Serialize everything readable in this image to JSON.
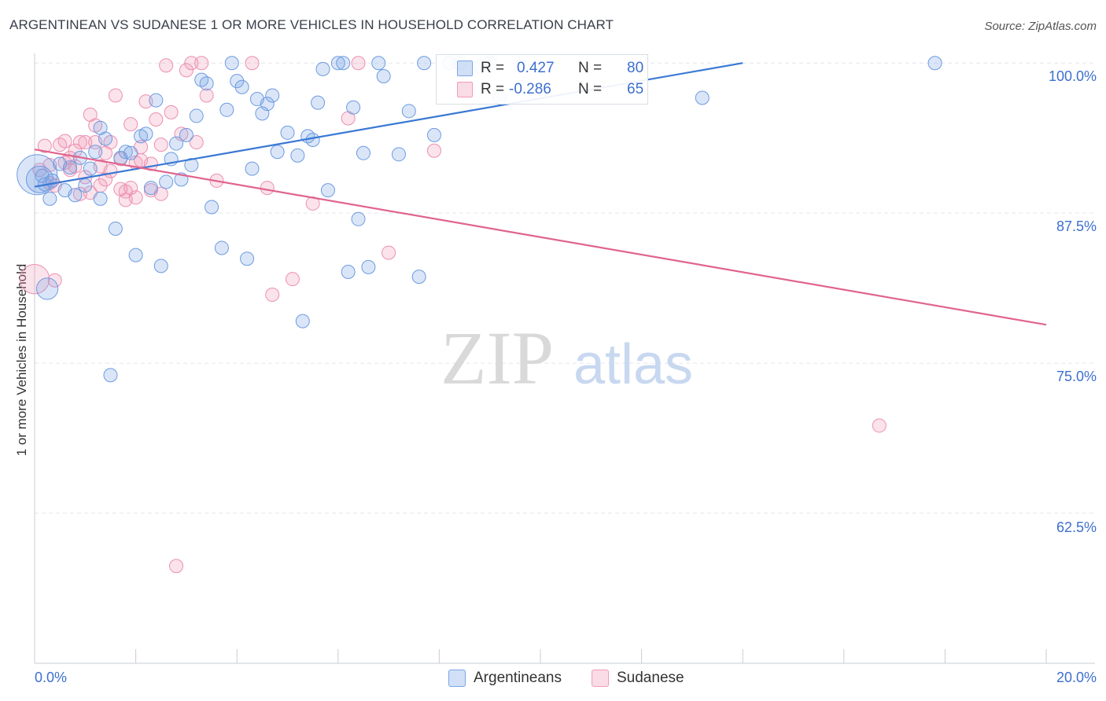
{
  "title": "ARGENTINEAN VS SUDANESE 1 OR MORE VEHICLES IN HOUSEHOLD CORRELATION CHART",
  "source": "Source: ZipAtlas.com",
  "watermark": {
    "zip": "ZIP",
    "atlas": "atlas"
  },
  "legend_top": {
    "rows": [
      {
        "r_label": "R =",
        "r_value": "0.427",
        "n_label": "N =",
        "n_value": "80",
        "color": "#7aa5e6"
      },
      {
        "r_label": "R =",
        "r_value": "-0.286",
        "n_label": "N =",
        "n_value": "65",
        "color": "#f19ab8"
      }
    ]
  },
  "legend_bottom": [
    {
      "label": "Argentineans",
      "color": "#7aa5e6"
    },
    {
      "label": "Sudanese",
      "color": "#f19ab8"
    }
  ],
  "colors": {
    "blue": "#3a78d4",
    "blue_fill": "rgba(122,165,230,0.28)",
    "blue_stroke": "#6d9be0",
    "pink": "#e0648f",
    "pink_fill": "rgba(241,154,184,0.28)",
    "pink_stroke": "#ec8fb0",
    "axis_text": "#3d6fce",
    "grid": "#e3e6ec"
  },
  "chart_data": {
    "type": "scatter",
    "title": "ARGENTINEAN VS SUDANESE 1 OR MORE VEHICLES IN HOUSEHOLD CORRELATION CHART",
    "xlabel": "",
    "ylabel": "1 or more Vehicles in Household",
    "xlim": [
      0,
      20
    ],
    "ylim": [
      50,
      100.8
    ],
    "x_tick_labels": [
      "0.0%",
      "20.0%"
    ],
    "y_ticks": [
      62.5,
      75.0,
      87.5,
      100.0
    ],
    "y_tick_labels": [
      "62.5%",
      "75.0%",
      "87.5%",
      "100.0%"
    ],
    "grid": true,
    "legend_position": "top-center",
    "series": [
      {
        "name": "Argentineans",
        "r": 0.427,
        "n": 80,
        "trend": {
          "x": [
            0.0,
            14.0
          ],
          "y": [
            89.7,
            100.0
          ]
        },
        "points": [
          [
            0.05,
            90.7,
            3
          ],
          [
            0.1,
            90.3,
            2
          ],
          [
            0.15,
            90.6,
            1
          ],
          [
            0.2,
            89.9,
            1
          ],
          [
            0.25,
            81.2,
            1.6
          ],
          [
            0.3,
            88.7,
            1
          ],
          [
            0.35,
            90.2,
            1
          ],
          [
            0.5,
            91.6,
            1
          ],
          [
            0.6,
            89.4,
            1
          ],
          [
            0.7,
            91.3,
            1
          ],
          [
            0.8,
            89.0,
            1
          ],
          [
            0.9,
            92.1,
            1
          ],
          [
            1.0,
            89.8,
            1
          ],
          [
            1.1,
            91.2,
            1
          ],
          [
            1.2,
            92.6,
            1
          ],
          [
            1.3,
            88.7,
            1
          ],
          [
            1.4,
            93.7,
            1
          ],
          [
            1.6,
            86.2,
            1
          ],
          [
            1.7,
            92.1,
            1
          ],
          [
            1.8,
            92.6,
            1
          ],
          [
            1.9,
            92.5,
            1
          ],
          [
            1.3,
            94.6,
            1
          ],
          [
            2.0,
            84.0,
            1
          ],
          [
            2.1,
            93.9,
            1
          ],
          [
            2.2,
            94.1,
            1
          ],
          [
            2.3,
            89.6,
            1
          ],
          [
            2.4,
            96.9,
            1
          ],
          [
            2.5,
            83.1,
            1
          ],
          [
            2.6,
            90.1,
            1
          ],
          [
            2.7,
            92.0,
            1
          ],
          [
            2.8,
            93.3,
            1
          ],
          [
            2.9,
            90.3,
            1
          ],
          [
            3.0,
            94.0,
            1
          ],
          [
            3.1,
            91.5,
            1
          ],
          [
            3.2,
            95.6,
            1
          ],
          [
            3.3,
            98.6,
            1
          ],
          [
            3.4,
            98.3,
            1
          ],
          [
            3.5,
            88.0,
            1
          ],
          [
            3.7,
            84.6,
            1
          ],
          [
            3.8,
            96.1,
            1
          ],
          [
            3.9,
            100.0,
            1
          ],
          [
            4.0,
            98.5,
            1
          ],
          [
            4.1,
            98.0,
            1
          ],
          [
            4.2,
            83.7,
            1
          ],
          [
            4.3,
            91.2,
            1
          ],
          [
            4.4,
            97.0,
            1
          ],
          [
            4.5,
            95.8,
            1
          ],
          [
            4.6,
            96.6,
            1
          ],
          [
            4.7,
            97.3,
            1
          ],
          [
            4.8,
            92.6,
            1
          ],
          [
            5.0,
            94.2,
            1
          ],
          [
            5.2,
            92.3,
            1
          ],
          [
            5.3,
            78.5,
            1
          ],
          [
            5.4,
            93.9,
            1
          ],
          [
            5.5,
            93.6,
            1
          ],
          [
            5.6,
            96.7,
            1
          ],
          [
            5.7,
            99.5,
            1
          ],
          [
            5.8,
            89.4,
            1
          ],
          [
            6.0,
            100.0,
            1
          ],
          [
            6.2,
            82.6,
            1
          ],
          [
            6.3,
            96.3,
            1
          ],
          [
            6.4,
            87.0,
            1
          ],
          [
            6.5,
            92.5,
            1
          ],
          [
            6.6,
            83.0,
            1
          ],
          [
            6.8,
            100.0,
            1
          ],
          [
            6.9,
            98.9,
            1
          ],
          [
            7.2,
            92.4,
            1
          ],
          [
            7.4,
            96.0,
            1
          ],
          [
            7.6,
            82.2,
            1
          ],
          [
            7.7,
            100.0,
            1
          ],
          [
            7.9,
            94.0,
            1
          ],
          [
            8.2,
            100.0,
            1
          ],
          [
            8.4,
            100.0,
            1
          ],
          [
            8.8,
            99.7,
            1
          ],
          [
            9.0,
            100.0,
            1
          ],
          [
            9.2,
            97.1,
            1
          ],
          [
            6.1,
            100.0,
            1
          ],
          [
            1.5,
            74.0,
            1
          ],
          [
            13.2,
            97.1,
            1
          ],
          [
            17.8,
            100.0,
            1
          ]
        ]
      },
      {
        "name": "Sudanese",
        "r": -0.286,
        "n": 65,
        "trend": {
          "x": [
            0.0,
            20.0
          ],
          "y": [
            92.8,
            78.2
          ]
        },
        "points": [
          [
            0.0,
            82.0,
            2.2
          ],
          [
            0.1,
            91.1,
            1
          ],
          [
            0.2,
            93.1,
            1
          ],
          [
            0.3,
            90.0,
            1
          ],
          [
            0.4,
            81.9,
            1
          ],
          [
            0.5,
            93.2,
            1
          ],
          [
            0.6,
            91.7,
            1
          ],
          [
            0.7,
            92.1,
            1
          ],
          [
            0.8,
            91.4,
            1
          ],
          [
            0.9,
            89.1,
            1
          ],
          [
            1.0,
            93.4,
            1
          ],
          [
            1.1,
            95.7,
            1
          ],
          [
            1.2,
            94.8,
            1
          ],
          [
            1.3,
            91.4,
            1
          ],
          [
            1.4,
            92.5,
            1
          ],
          [
            1.5,
            91.0,
            1
          ],
          [
            1.6,
            97.3,
            1
          ],
          [
            1.7,
            92.0,
            1
          ],
          [
            1.8,
            89.3,
            1
          ],
          [
            1.9,
            94.9,
            1
          ],
          [
            2.0,
            88.8,
            1
          ],
          [
            2.1,
            93.0,
            1
          ],
          [
            2.2,
            96.8,
            1
          ],
          [
            2.3,
            89.4,
            1
          ],
          [
            2.4,
            95.3,
            1
          ],
          [
            2.5,
            89.1,
            1
          ],
          [
            2.6,
            99.8,
            1
          ],
          [
            2.7,
            95.9,
            1
          ],
          [
            2.8,
            58.1,
            1
          ],
          [
            2.9,
            94.1,
            1
          ],
          [
            3.0,
            99.4,
            1
          ],
          [
            3.1,
            100.0,
            1
          ],
          [
            3.2,
            93.4,
            1
          ],
          [
            3.4,
            97.3,
            1
          ],
          [
            3.6,
            90.2,
            1
          ],
          [
            0.9,
            93.4,
            1
          ],
          [
            1.2,
            93.4,
            1
          ],
          [
            1.7,
            89.5,
            1
          ],
          [
            2.0,
            91.7,
            1
          ],
          [
            2.3,
            91.6,
            1
          ],
          [
            3.3,
            100.0,
            1
          ],
          [
            4.3,
            100.0,
            1
          ],
          [
            4.6,
            89.6,
            1
          ],
          [
            4.7,
            80.7,
            1
          ],
          [
            5.1,
            82.0,
            1
          ],
          [
            5.5,
            88.3,
            1
          ],
          [
            6.2,
            95.4,
            1
          ],
          [
            6.4,
            100.0,
            1
          ],
          [
            7.0,
            84.2,
            1
          ],
          [
            7.9,
            92.7,
            1
          ],
          [
            1.0,
            90.5,
            1
          ],
          [
            1.3,
            89.8,
            1
          ],
          [
            1.8,
            88.6,
            1
          ],
          [
            0.6,
            93.5,
            1
          ],
          [
            1.5,
            93.4,
            1
          ],
          [
            0.8,
            92.7,
            1
          ],
          [
            2.1,
            91.9,
            1
          ],
          [
            1.4,
            90.3,
            1
          ],
          [
            16.7,
            69.8,
            1
          ],
          [
            0.4,
            89.8,
            1
          ],
          [
            1.1,
            89.2,
            1
          ],
          [
            0.7,
            91.1,
            1
          ],
          [
            1.9,
            89.6,
            1
          ],
          [
            2.5,
            93.2,
            1
          ],
          [
            0.3,
            91.5,
            1
          ]
        ]
      }
    ]
  }
}
